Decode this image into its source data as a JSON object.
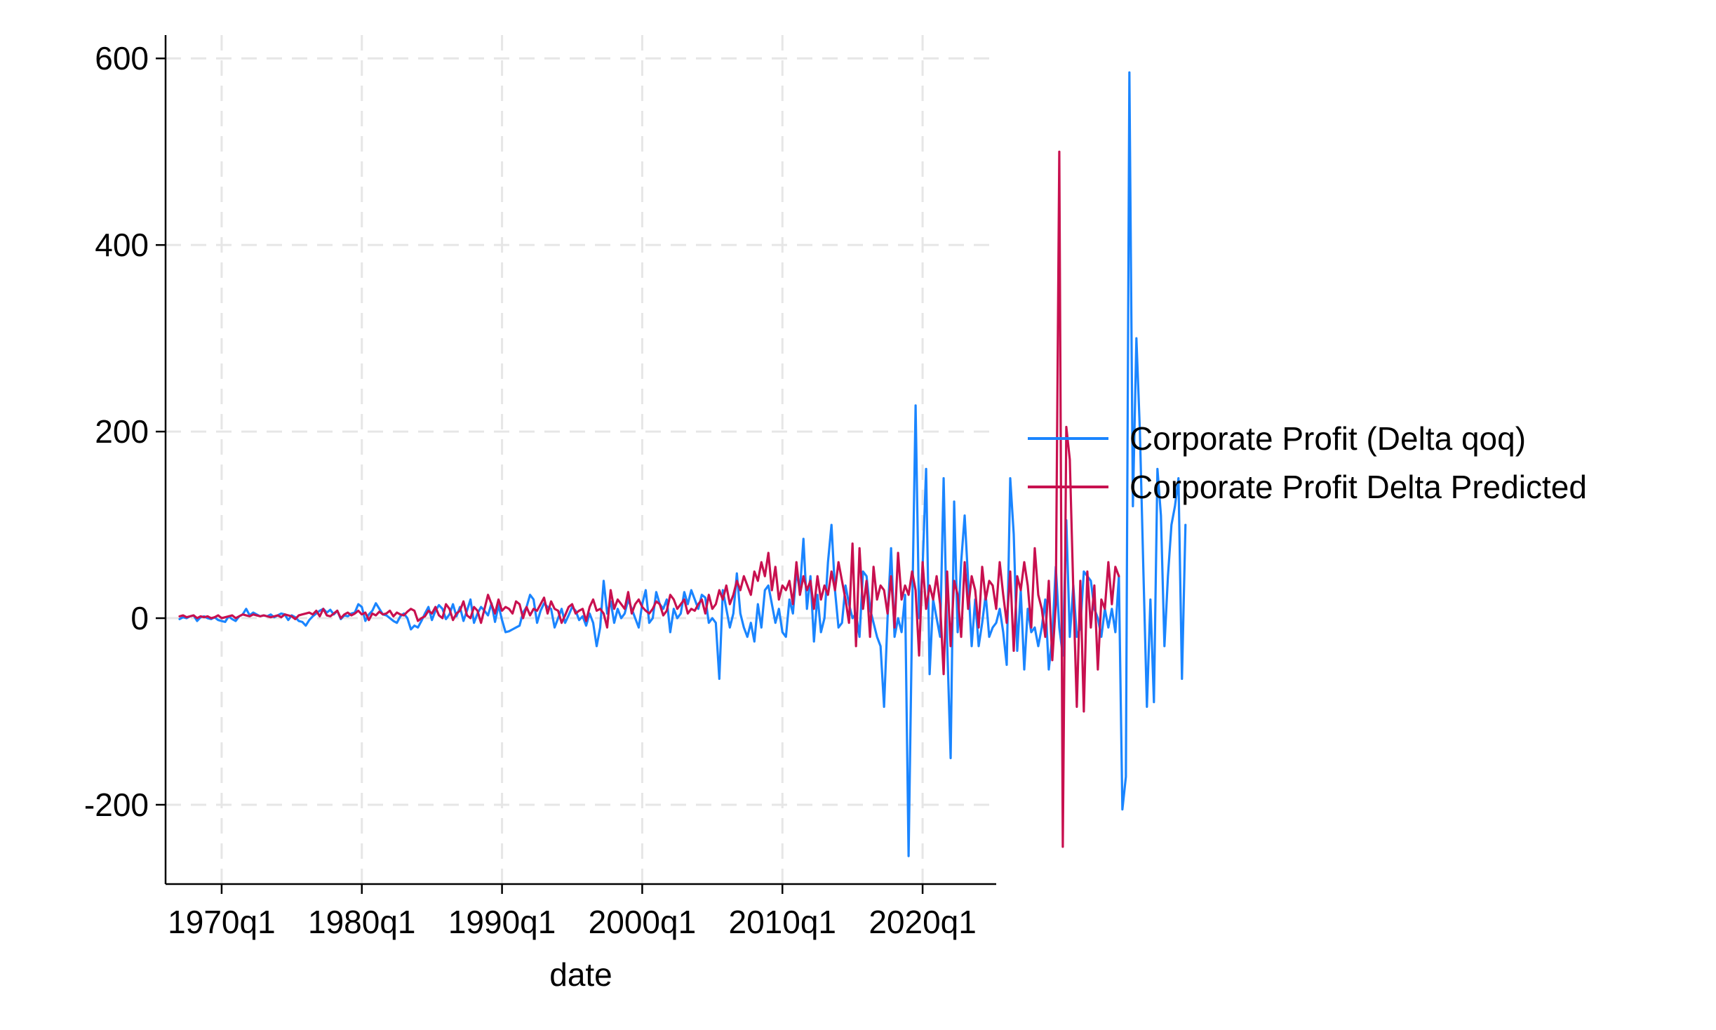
{
  "chart_data": {
    "type": "line",
    "title": "",
    "xlabel": "date",
    "ylabel": "",
    "x_start_quarter": "1967q1",
    "x_end_quarter": "2024q2",
    "xlim": [
      "1966q1",
      "2025q2"
    ],
    "ylim": [
      -285,
      625
    ],
    "x_ticks": [
      "1970q1",
      "1980q1",
      "1990q1",
      "2000q1",
      "2010q1",
      "2020q1"
    ],
    "y_ticks": [
      -200,
      0,
      200,
      400,
      600
    ],
    "grid": true,
    "legend_position": "right",
    "series": [
      {
        "name": "Corporate Profit (Delta qoq)",
        "color": "#1a85ff",
        "values": [
          -1,
          1,
          0,
          2,
          3,
          -3,
          1,
          2,
          0,
          -1,
          1,
          -2,
          -3,
          -4,
          2,
          -1,
          -3,
          2,
          4,
          10,
          3,
          6,
          4,
          2,
          3,
          2,
          4,
          1,
          3,
          5,
          4,
          -2,
          3,
          1,
          -3,
          -4,
          -8,
          -2,
          2,
          5,
          8,
          10,
          6,
          9,
          4,
          8,
          -1,
          3,
          2,
          5,
          6,
          15,
          12,
          -3,
          4,
          8,
          16,
          10,
          4,
          3,
          0,
          -3,
          -5,
          2,
          5,
          0,
          -12,
          -8,
          -10,
          -3,
          5,
          12,
          -2,
          8,
          14,
          10,
          -1,
          4,
          15,
          2,
          12,
          -3,
          8,
          20,
          -5,
          5,
          12,
          8,
          3,
          16,
          -4,
          14,
          -2,
          -15,
          -14,
          -12,
          -10,
          -8,
          6,
          12,
          25,
          20,
          -5,
          8,
          16,
          12,
          10,
          -10,
          0,
          10,
          -5,
          3,
          12,
          8,
          -2,
          2,
          -8,
          5,
          -5,
          -30,
          -10,
          40,
          5,
          18,
          -5,
          10,
          0,
          5,
          20,
          10,
          0,
          -10,
          15,
          30,
          -5,
          0,
          28,
          15,
          10,
          20,
          -15,
          10,
          0,
          5,
          28,
          15,
          30,
          20,
          10,
          25,
          22,
          -5,
          0,
          -5,
          -65,
          30,
          10,
          -10,
          5,
          48,
          5,
          -10,
          -20,
          -5,
          -25,
          15,
          -10,
          30,
          35,
          15,
          -5,
          10,
          -15,
          -20,
          20,
          5,
          50,
          30,
          85,
          10,
          45,
          -25,
          25,
          -15,
          0,
          60,
          100,
          30,
          -10,
          -5,
          35,
          15,
          0,
          5,
          -20,
          50,
          45,
          10,
          -5,
          -20,
          -30,
          -95,
          0,
          75,
          -20,
          0,
          -15,
          25,
          -255,
          0,
          228,
          0,
          55,
          160,
          -60,
          20,
          0,
          -20,
          150,
          -25,
          -150,
          125,
          -15,
          60,
          110,
          40,
          -30,
          20,
          -30,
          -5,
          25,
          -20,
          -10,
          -5,
          10,
          -15,
          -50,
          150,
          90,
          -35,
          30,
          -55,
          10,
          -15,
          -10,
          -30,
          -10,
          20,
          -55,
          -20,
          55,
          -10,
          -40,
          105,
          -20,
          35,
          -20,
          -10,
          50,
          45,
          40,
          10,
          0,
          -20,
          10,
          -10,
          10,
          -15,
          45,
          -205,
          -170,
          585,
          120,
          300,
          200,
          50,
          -95,
          20,
          -90,
          160,
          110,
          -30,
          45,
          100,
          120,
          150,
          -65,
          100
        ]
      },
      {
        "name": "Corporate Profit Delta Predicted",
        "color": "#c8104f",
        "values": [
          2,
          3,
          1,
          2,
          3,
          0,
          2,
          1,
          2,
          0,
          1,
          3,
          0,
          1,
          2,
          3,
          0,
          2,
          4,
          3,
          2,
          4,
          3,
          2,
          3,
          2,
          1,
          2,
          3,
          1,
          4,
          3,
          2,
          -1,
          3,
          4,
          5,
          6,
          4,
          8,
          2,
          10,
          3,
          2,
          5,
          8,
          0,
          4,
          6,
          3,
          5,
          8,
          4,
          6,
          -2,
          5,
          3,
          7,
          4,
          5,
          8,
          2,
          6,
          4,
          3,
          7,
          10,
          8,
          -3,
          0,
          2,
          8,
          5,
          12,
          3,
          0,
          15,
          10,
          -2,
          5,
          8,
          18,
          3,
          0,
          12,
          8,
          -5,
          10,
          25,
          15,
          5,
          20,
          8,
          12,
          10,
          5,
          18,
          15,
          0,
          12,
          3,
          10,
          8,
          15,
          22,
          5,
          18,
          10,
          8,
          -5,
          3,
          12,
          15,
          5,
          8,
          10,
          -3,
          12,
          20,
          8,
          10,
          5,
          -10,
          30,
          10,
          20,
          15,
          10,
          28,
          5,
          15,
          20,
          12,
          8,
          5,
          10,
          18,
          15,
          3,
          8,
          25,
          20,
          10,
          15,
          20,
          5,
          10,
          8,
          15,
          20,
          5,
          25,
          10,
          15,
          30,
          20,
          35,
          15,
          25,
          40,
          30,
          45,
          35,
          25,
          50,
          40,
          60,
          45,
          70,
          30,
          55,
          20,
          35,
          30,
          40,
          15,
          60,
          25,
          45,
          30,
          40,
          10,
          45,
          20,
          35,
          25,
          50,
          30,
          60,
          40,
          20,
          -5,
          80,
          -30,
          75,
          10,
          40,
          -20,
          55,
          20,
          35,
          30,
          5,
          45,
          -10,
          70,
          20,
          35,
          25,
          50,
          30,
          -40,
          60,
          10,
          35,
          20,
          45,
          15,
          -60,
          50,
          -30,
          40,
          25,
          -20,
          60,
          10,
          45,
          30,
          -10,
          55,
          20,
          40,
          35,
          10,
          60,
          25,
          -5,
          50,
          -35,
          45,
          30,
          60,
          35,
          -10,
          75,
          25,
          10,
          -20,
          40,
          -45,
          15,
          500,
          -245,
          205,
          170,
          30,
          -95,
          40,
          -100,
          50,
          -10,
          35,
          -55,
          20,
          10,
          60,
          15,
          55,
          45
        ]
      }
    ]
  }
}
